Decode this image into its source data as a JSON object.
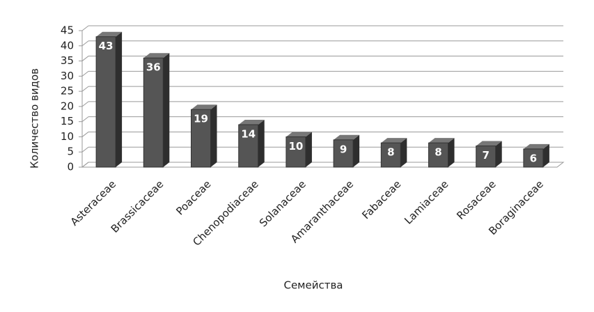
{
  "chart_data": {
    "type": "bar",
    "categories": [
      "Asteraceae",
      "Brassicaceae",
      "Poaceae",
      "Chenopodiaceae",
      "Solanaceae",
      "Amaranthaceae",
      "Fabaceae",
      "Lamiaceae",
      "Rosaceae",
      "Boraginaceae"
    ],
    "values": [
      43,
      36,
      19,
      14,
      10,
      9,
      8,
      8,
      7,
      6
    ],
    "color": "#555555",
    "ylim": [
      0,
      45
    ],
    "yticks": [
      0,
      5,
      10,
      15,
      20,
      25,
      30,
      35,
      40,
      45
    ],
    "grid": true,
    "y_label": "Количество видов",
    "x_label": "Семейства"
  }
}
